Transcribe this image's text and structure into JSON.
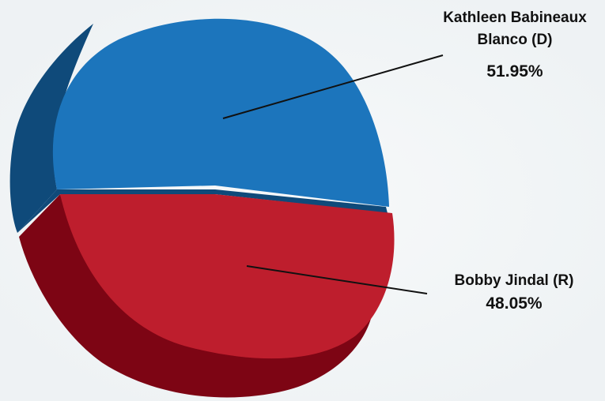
{
  "chart_data": {
    "type": "pie",
    "style": "3d-exploded",
    "categories": [
      "Kathleen Babineaux Blanco (D)",
      "Bobby Jindal (R)"
    ],
    "values": [
      51.95,
      48.05
    ],
    "value_labels": [
      "51.95%",
      "48.05%"
    ],
    "label_lines": [
      [
        "Kathleen Babineaux",
        "Blanco (D)"
      ],
      [
        "Bobby Jindal (R)"
      ]
    ],
    "colors": {
      "blue_top": "#1c75bc",
      "blue_side": "#0f4a7a",
      "red_top": "#be1e2d",
      "red_side": "#7d0514"
    },
    "title": "",
    "legend": "none"
  }
}
